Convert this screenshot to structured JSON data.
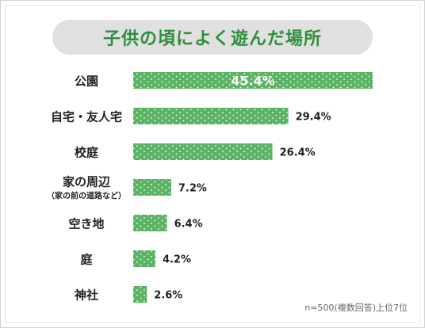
{
  "chart_data": {
    "type": "bar",
    "orientation": "horizontal",
    "title": "子供の頃によく遊んだ場所",
    "categories": [
      {
        "label": "公園",
        "sublabel": ""
      },
      {
        "label": "自宅・友人宅",
        "sublabel": ""
      },
      {
        "label": "校庭",
        "sublabel": ""
      },
      {
        "label": "家の周辺",
        "sublabel": "（家の前の道路など）"
      },
      {
        "label": "空き地",
        "sublabel": ""
      },
      {
        "label": "庭",
        "sublabel": ""
      },
      {
        "label": "神社",
        "sublabel": ""
      }
    ],
    "values": [
      45.4,
      29.4,
      26.4,
      7.2,
      6.4,
      4.2,
      2.6
    ],
    "value_labels": [
      "45.4%",
      "29.4%",
      "26.4%",
      "7.2%",
      "6.4%",
      "4.2%",
      "2.6%"
    ],
    "xlim": [
      0,
      45.4
    ],
    "bar_color": "#5bb464",
    "dot_color": "#ffffff",
    "title_color": "#2e8f3b",
    "title_bg": "#e0e0e0",
    "grid": false,
    "footnote": "n=500(複数回答)上位7位"
  }
}
